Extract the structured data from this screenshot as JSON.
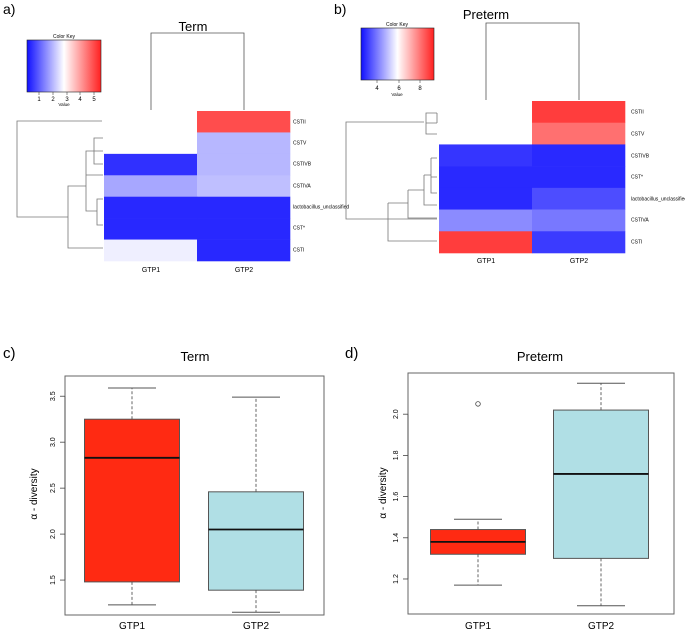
{
  "chart_data": [
    {
      "panel": "a)",
      "type": "heatmap",
      "title": "Term",
      "columns": [
        "GTP1",
        "GTP2"
      ],
      "rows": [
        "CSTII",
        "CSTV",
        "CSTIVB",
        "CSTIVA",
        "lactobacillus_unclassified",
        "CST*",
        "CSTI"
      ],
      "values": [
        [
          null,
          5.4
        ],
        [
          null,
          2.1
        ],
        [
          0.4,
          2.1
        ],
        [
          1.9,
          2.2
        ],
        [
          0.3,
          0.3
        ],
        [
          0.3,
          0.3
        ],
        [
          2.8,
          0.3
        ]
      ],
      "color_key": {
        "title": "Color Key",
        "xlabel": "Value",
        "ticks": [
          1,
          2,
          3,
          4,
          5
        ],
        "range": [
          0,
          6
        ]
      }
    },
    {
      "panel": "b)",
      "type": "heatmap",
      "title": "Preterm",
      "columns": [
        "GTP1",
        "GTP2"
      ],
      "rows": [
        "CSTII",
        "CSTV",
        "CSTIVB",
        "CST*",
        "lactobacillus_unclassified",
        "CSTIVA",
        "CSTI"
      ],
      "values": [
        [
          null,
          9.5
        ],
        [
          null,
          8.6
        ],
        [
          2.8,
          2.6
        ],
        [
          2.6,
          2.6
        ],
        [
          2.6,
          3.2
        ],
        [
          4.2,
          3.9
        ],
        [
          9.5,
          2.9
        ]
      ],
      "color_key": {
        "title": "Color Key",
        "xlabel": "Value",
        "ticks": [
          4,
          6,
          8
        ],
        "range": [
          2.2,
          10
        ]
      }
    },
    {
      "panel": "c)",
      "type": "box",
      "title": "Term",
      "ylabel": "α - diversity",
      "categories": [
        "GTP1",
        "GTP2"
      ],
      "ylim": [
        1.12,
        3.72
      ],
      "yticks": [
        "1.5",
        "2.0",
        "2.5",
        "3.0",
        "3.5"
      ],
      "boxes": [
        {
          "name": "GTP1",
          "min": 1.23,
          "q1": 1.48,
          "median": 2.83,
          "q3": 3.25,
          "max": 3.59,
          "outliers": [],
          "color": "#ff2a12"
        },
        {
          "name": "GTP2",
          "min": 1.15,
          "q1": 1.39,
          "median": 2.05,
          "q3": 2.46,
          "max": 3.49,
          "outliers": [],
          "color": "#b0dfe5"
        }
      ]
    },
    {
      "panel": "d)",
      "type": "box",
      "title": "Preterm",
      "ylabel": "α - diversity",
      "categories": [
        "GTP1",
        "GTP2"
      ],
      "ylim": [
        1.03,
        2.2
      ],
      "yticks": [
        "1.2",
        "1.4",
        "1.6",
        "1.8",
        "2.0"
      ],
      "boxes": [
        {
          "name": "GTP1",
          "min": 1.17,
          "q1": 1.32,
          "median": 1.38,
          "q3": 1.44,
          "max": 1.49,
          "outliers": [
            2.05
          ],
          "color": "#ff2a12"
        },
        {
          "name": "GTP2",
          "min": 1.07,
          "q1": 1.3,
          "median": 1.71,
          "q3": 2.02,
          "max": 2.15,
          "outliers": [],
          "color": "#b0dfe5"
        }
      ]
    }
  ]
}
